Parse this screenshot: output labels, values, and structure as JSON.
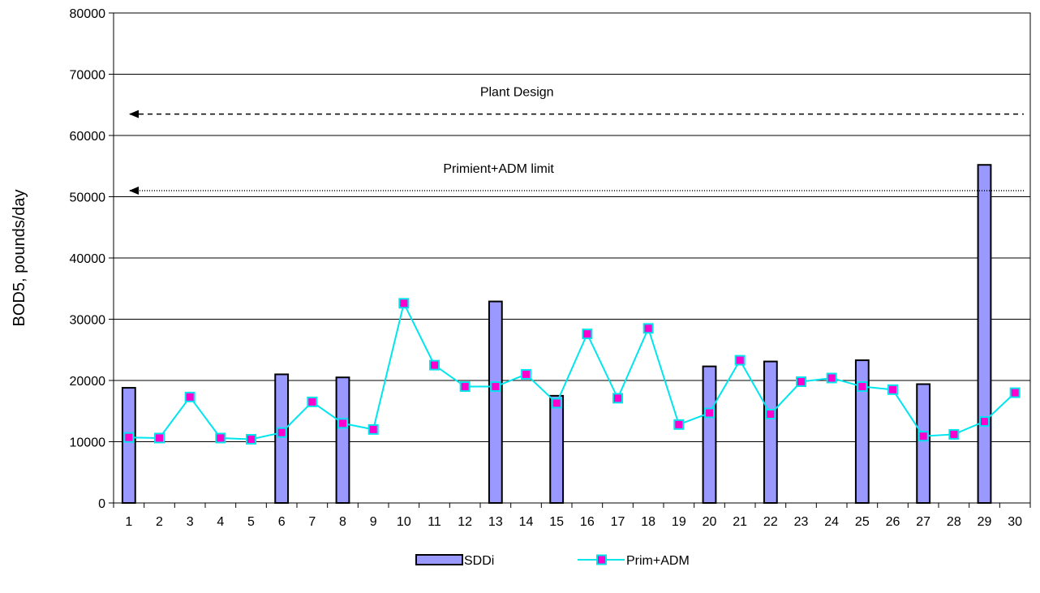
{
  "chart_data": {
    "type": "bar",
    "x": [
      1,
      2,
      3,
      4,
      5,
      6,
      7,
      8,
      9,
      10,
      11,
      12,
      13,
      14,
      15,
      16,
      17,
      18,
      19,
      20,
      21,
      22,
      23,
      24,
      25,
      26,
      27,
      28,
      29,
      30
    ],
    "ylabel": "BOD5, pounds/day",
    "xlabel": "",
    "ylim": [
      0,
      80000
    ],
    "yticks": [
      0,
      10000,
      20000,
      30000,
      40000,
      50000,
      60000,
      70000,
      80000
    ],
    "grid": "horizontal",
    "legend_position": "bottom",
    "series": [
      {
        "name": "SDDi",
        "type": "bar",
        "color": "#9999ff",
        "values": [
          18800,
          null,
          null,
          null,
          null,
          21000,
          null,
          20500,
          null,
          null,
          null,
          null,
          32900,
          null,
          17500,
          null,
          null,
          null,
          null,
          22300,
          null,
          23100,
          null,
          null,
          23300,
          null,
          19400,
          null,
          55200,
          null
        ]
      },
      {
        "name": "Prim+ADM",
        "type": "line",
        "color": "#00e5ee",
        "marker_color": "#ff00cc",
        "values": [
          10700,
          10600,
          17300,
          10600,
          10400,
          11500,
          16500,
          13000,
          12000,
          32600,
          22500,
          19000,
          19000,
          21000,
          16300,
          27600,
          17100,
          28500,
          12800,
          14700,
          23300,
          14500,
          19800,
          20400,
          19000,
          18500,
          10900,
          11200,
          13300,
          18000
        ]
      }
    ],
    "annotations": [
      {
        "text": "Plant Design",
        "value": 63500,
        "style": "dashed-arrow"
      },
      {
        "text": "Primient+ADM limit",
        "value": 51000,
        "style": "dotted-arrow"
      }
    ]
  }
}
